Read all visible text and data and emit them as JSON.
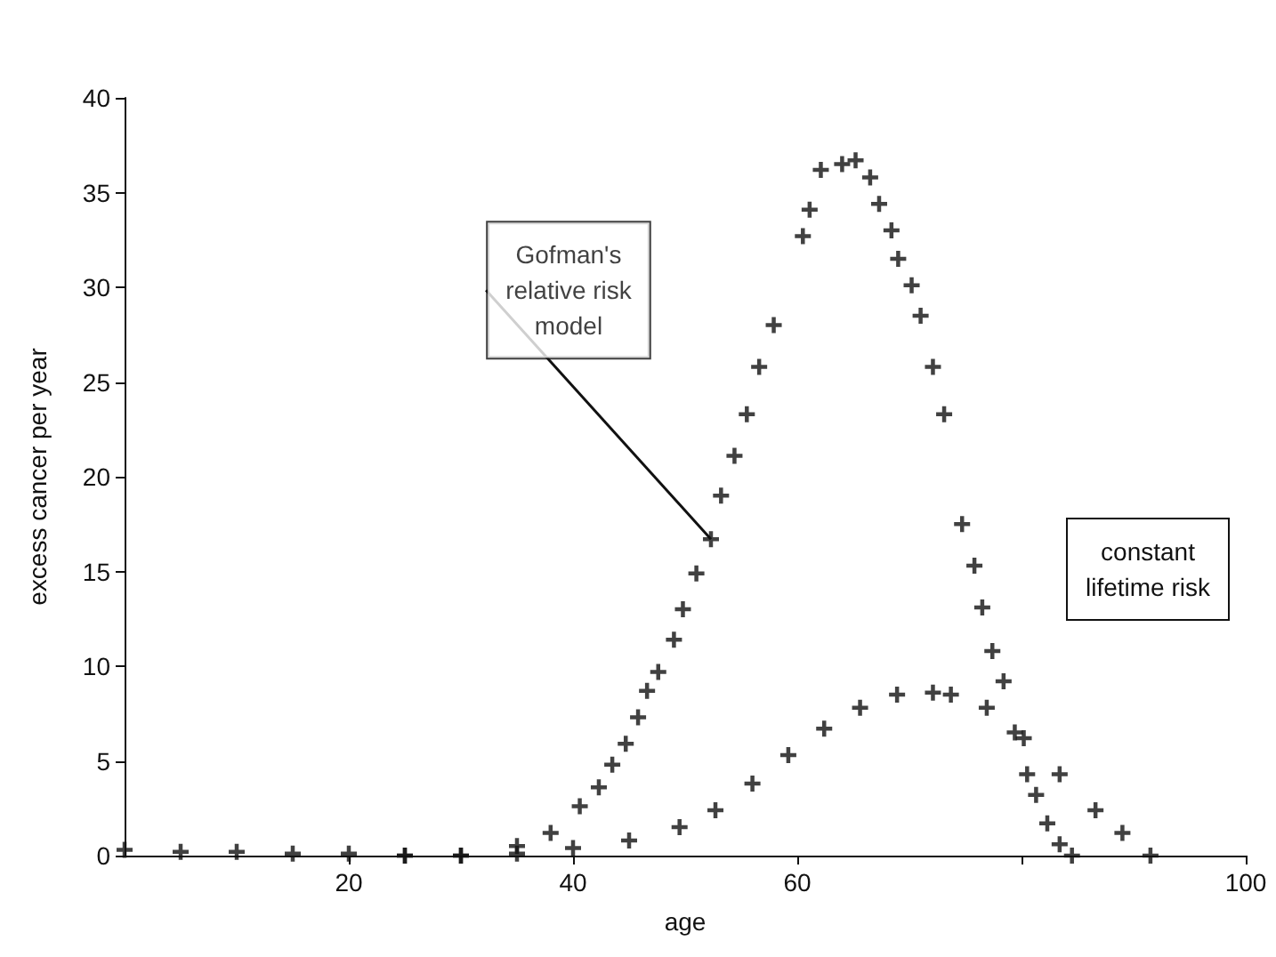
{
  "chart_data": {
    "type": "scatter",
    "xlabel": "age",
    "ylabel": "excess cancer per year",
    "xlim": [
      0,
      100
    ],
    "xticks": [
      20,
      40,
      60,
      {
        "value": 80,
        "label": null
      },
      100
    ],
    "ylim": [
      0,
      40
    ],
    "yticks": [
      0,
      5,
      10,
      15,
      20,
      25,
      30,
      35,
      40
    ],
    "marker": "cross",
    "annotations": [
      {
        "text": "Gofman's relative risk model",
        "x": 52.3,
        "y": 16.7
      },
      "constant lifetime risk"
    ],
    "series": [
      {
        "color": "#111111",
        "x": [
          25,
          30,
          35,
          38,
          40.6,
          42.3,
          43.5,
          44.7,
          45.8,
          46.6,
          47.6,
          49.0,
          49.8,
          51.0,
          52.3,
          53.2,
          54.4,
          55.5,
          56.6,
          57.9,
          60.5,
          61.1,
          62.1,
          64.0,
          65.2,
          66.5,
          67.3,
          68.4,
          69.0,
          70.2,
          71.0,
          72.1,
          73.1,
          74.7,
          75.8,
          76.5,
          77.4,
          78.4,
          79.4,
          80.5,
          81.3,
          82.3,
          83.4,
          84.5
        ],
        "values": [
          0,
          0,
          0.5,
          1.2,
          2.6,
          3.6,
          4.8,
          5.9,
          7.3,
          8.7,
          9.7,
          11.4,
          13.0,
          14.9,
          16.7,
          19.0,
          21.1,
          23.3,
          25.8,
          28.0,
          32.7,
          34.1,
          36.2,
          36.5,
          36.7,
          35.8,
          34.4,
          33.0,
          31.5,
          30.1,
          28.5,
          25.8,
          23.3,
          17.5,
          15.3,
          13.1,
          10.8,
          9.2,
          6.5,
          4.3,
          3.2,
          1.7,
          0.6,
          0
        ]
      },
      {
        "color": "#111111",
        "x": [
          0,
          5,
          10,
          15,
          20,
          25,
          30,
          35,
          40,
          45,
          49.5,
          52.7,
          56.0,
          59.2,
          62.4,
          65.6,
          68.9,
          72.1,
          73.7,
          76.9,
          80.2,
          83.4,
          86.6,
          89.0,
          91.5
        ],
        "values": [
          0.3,
          0.2,
          0.2,
          0.1,
          0.1,
          0,
          0,
          0.1,
          0.4,
          0.8,
          1.5,
          2.4,
          3.8,
          5.3,
          6.7,
          7.8,
          8.5,
          8.6,
          8.5,
          7.8,
          6.2,
          4.3,
          2.4,
          1.2,
          0
        ]
      }
    ]
  }
}
